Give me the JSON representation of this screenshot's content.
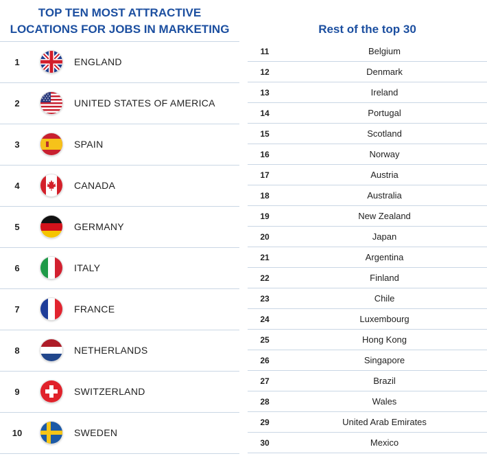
{
  "left": {
    "title_line1": "TOP TEN MOST ATTRACTIVE",
    "title_line2": "LOCATIONS FOR JOBS IN MARKETING",
    "items": [
      {
        "rank": "1",
        "country": "ENGLAND",
        "flag": "england-flag-icon"
      },
      {
        "rank": "2",
        "country": "UNITED STATES OF AMERICA",
        "flag": "usa-flag-icon"
      },
      {
        "rank": "3",
        "country": "SPAIN",
        "flag": "spain-flag-icon"
      },
      {
        "rank": "4",
        "country": "CANADA",
        "flag": "canada-flag-icon"
      },
      {
        "rank": "5",
        "country": "GERMANY",
        "flag": "germany-flag-icon"
      },
      {
        "rank": "6",
        "country": "ITALY",
        "flag": "italy-flag-icon"
      },
      {
        "rank": "7",
        "country": "FRANCE",
        "flag": "france-flag-icon"
      },
      {
        "rank": "8",
        "country": "NETHERLANDS",
        "flag": "netherlands-flag-icon"
      },
      {
        "rank": "9",
        "country": "SWITZERLAND",
        "flag": "switzerland-flag-icon"
      },
      {
        "rank": "10",
        "country": "SWEDEN",
        "flag": "sweden-flag-icon"
      }
    ]
  },
  "right": {
    "title": "Rest of the top 30",
    "items": [
      {
        "rank": "11",
        "country": "Belgium"
      },
      {
        "rank": "12",
        "country": "Denmark"
      },
      {
        "rank": "13",
        "country": "Ireland"
      },
      {
        "rank": "14",
        "country": "Portugal"
      },
      {
        "rank": "15",
        "country": "Scotland"
      },
      {
        "rank": "16",
        "country": "Norway"
      },
      {
        "rank": "17",
        "country": "Austria"
      },
      {
        "rank": "18",
        "country": "Australia"
      },
      {
        "rank": "19",
        "country": "New Zealand"
      },
      {
        "rank": "20",
        "country": "Japan"
      },
      {
        "rank": "21",
        "country": "Argentina"
      },
      {
        "rank": "22",
        "country": "Finland"
      },
      {
        "rank": "23",
        "country": "Chile"
      },
      {
        "rank": "24",
        "country": "Luxembourg"
      },
      {
        "rank": "25",
        "country": "Hong Kong"
      },
      {
        "rank": "26",
        "country": "Singapore"
      },
      {
        "rank": "27",
        "country": "Brazil"
      },
      {
        "rank": "28",
        "country": "Wales"
      },
      {
        "rank": "29",
        "country": "United Arab Emirates"
      },
      {
        "rank": "30",
        "country": "Mexico"
      }
    ]
  },
  "colors": {
    "title": "#1c4fa0",
    "divider": "#c9d6e4",
    "text": "#222222"
  }
}
